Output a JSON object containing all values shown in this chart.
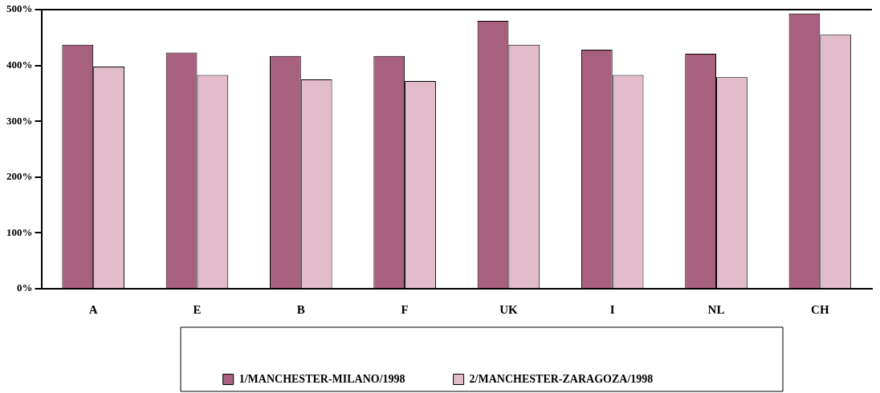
{
  "chart_data": {
    "type": "bar",
    "categories": [
      "A",
      "E",
      "B",
      "F",
      "UK",
      "I",
      "NL",
      "CH"
    ],
    "series": [
      {
        "name": "1/MANCHESTER-MILANO/1998",
        "color": "#a8607f",
        "values": [
          437,
          423,
          417,
          417,
          480,
          428,
          421,
          493
        ]
      },
      {
        "name": "2/MANCHESTER-ZARAGOZA/1998",
        "color": "#e2bccb",
        "values": [
          398,
          383,
          375,
          372,
          437,
          383,
          379,
          455
        ]
      }
    ],
    "ylim": [
      0,
      500
    ],
    "yticks": [
      {
        "value": 0,
        "label": "0%"
      },
      {
        "value": 100,
        "label": "100%"
      },
      {
        "value": 200,
        "label": "200%"
      },
      {
        "value": 300,
        "label": "300%"
      },
      {
        "value": 400,
        "label": "400%"
      },
      {
        "value": 500,
        "label": "500%"
      }
    ],
    "grid": false,
    "legend": "bottom"
  }
}
